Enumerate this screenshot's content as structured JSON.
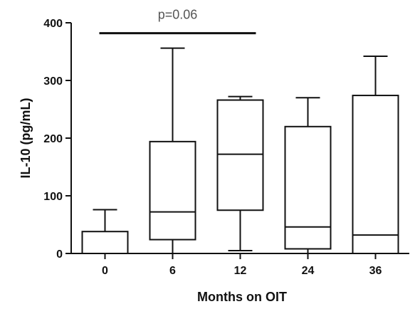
{
  "chart_data": {
    "type": "box",
    "title": "",
    "xlabel": "Months on OIT",
    "ylabel": "IL-10 (pg/mL)",
    "ylim": [
      0,
      400
    ],
    "yticks": [
      0,
      100,
      200,
      300,
      400
    ],
    "ytick_labels": [
      "0",
      "100",
      "200",
      "300",
      "400"
    ],
    "categories": [
      "0",
      "6",
      "12",
      "24",
      "36"
    ],
    "boxes": [
      {
        "category": "0",
        "min": 0,
        "q1": 0,
        "median": 0,
        "q3": 38,
        "max": 76
      },
      {
        "category": "6",
        "min": 0,
        "q1": 24,
        "median": 72,
        "q3": 194,
        "max": 356
      },
      {
        "category": "12",
        "min": 5,
        "q1": 75,
        "median": 172,
        "q3": 266,
        "max": 272
      },
      {
        "category": "24",
        "min": 0,
        "q1": 8,
        "median": 46,
        "q3": 220,
        "max": 270
      },
      {
        "category": "36",
        "min": 0,
        "q1": 0,
        "median": 32,
        "q3": 274,
        "max": 342
      }
    ],
    "annotations": [
      {
        "text": "p=0.06",
        "from_category": "0",
        "to_category": "12",
        "y": 382
      }
    ],
    "grid": false,
    "legend": "none"
  }
}
